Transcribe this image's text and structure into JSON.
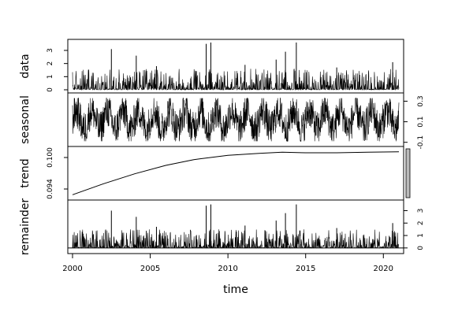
{
  "chart_data": {
    "type": "line",
    "title": "",
    "xlabel": "time",
    "x_range": [
      2000,
      2021
    ],
    "x_ticks": [
      "2000",
      "2005",
      "2010",
      "2015",
      "2020"
    ],
    "panels": [
      {
        "name": "data",
        "ylabel": "data",
        "axis_side": "left",
        "ylim": [
          0,
          3.6
        ],
        "y_ticks": [
          "0",
          "1",
          "2",
          "3"
        ],
        "baseline": 0,
        "peaks": [
          [
            2002.5,
            3.1
          ],
          [
            2004.1,
            2.6
          ],
          [
            2008.6,
            3.5
          ],
          [
            2008.9,
            3.6
          ],
          [
            2013.1,
            2.3
          ],
          [
            2013.7,
            2.9
          ],
          [
            2014.4,
            3.6
          ],
          [
            2020.6,
            2.1
          ],
          [
            2005.4,
            1.8
          ],
          [
            2011.1,
            1.9
          ],
          [
            2017.0,
            1.7
          ]
        ],
        "typical_max": 1.6
      },
      {
        "name": "seasonal",
        "ylabel": "seasonal",
        "axis_side": "right",
        "ylim": [
          -0.11,
          0.35
        ],
        "y_ticks": [
          "-0.1",
          "0.1",
          "0.3"
        ],
        "range": [
          -0.09,
          0.33
        ],
        "cycles_per_year": 1
      },
      {
        "name": "trend",
        "ylabel": "trend",
        "axis_side": "left",
        "ylim": [
          0.0925,
          0.1015
        ],
        "y_ticks": [
          "0.094",
          "0.100"
        ],
        "series": {
          "x": [
            2000,
            2002,
            2004,
            2006,
            2007.8,
            2010,
            2012,
            2013.5,
            2015,
            2017,
            2019,
            2021
          ],
          "values": [
            0.0929,
            0.095,
            0.0969,
            0.0985,
            0.0996,
            0.1004,
            0.1008,
            0.101,
            0.1009,
            0.1009,
            0.101,
            0.1011
          ]
        }
      },
      {
        "name": "remainder",
        "ylabel": "remainder",
        "axis_side": "right",
        "ylim": [
          -0.2,
          3.6
        ],
        "y_ticks": [
          "0",
          "1",
          "2",
          "3"
        ],
        "baseline": 0,
        "peaks": [
          [
            2002.5,
            3.0
          ],
          [
            2004.1,
            2.5
          ],
          [
            2008.6,
            3.4
          ],
          [
            2008.9,
            3.5
          ],
          [
            2013.1,
            2.2
          ],
          [
            2013.7,
            2.8
          ],
          [
            2014.4,
            3.5
          ],
          [
            2020.6,
            2.0
          ],
          [
            2005.4,
            1.7
          ],
          [
            2011.1,
            1.8
          ],
          [
            2017.0,
            1.6
          ]
        ],
        "typical_max": 1.5
      }
    ]
  }
}
